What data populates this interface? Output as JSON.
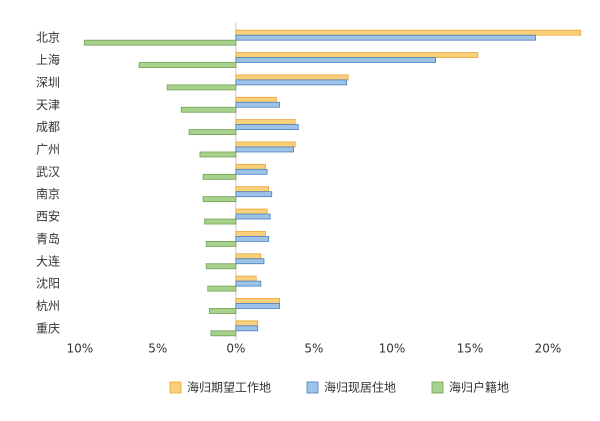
{
  "chart_data": {
    "type": "bar",
    "orientation": "horizontal",
    "categories": [
      "北京",
      "上海",
      "深圳",
      "天津",
      "成都",
      "广州",
      "武汉",
      "南京",
      "西安",
      "青岛",
      "大连",
      "沈阳",
      "杭州",
      "重庆"
    ],
    "series": [
      {
        "name": "海归期望工作地",
        "color": "#f9d07a",
        "values": [
          22.1,
          15.5,
          7.2,
          2.6,
          3.8,
          3.8,
          1.9,
          2.1,
          2.0,
          1.9,
          1.6,
          1.3,
          2.8,
          1.4
        ]
      },
      {
        "name": "海归现居住地",
        "color": "#9dc3e6",
        "values": [
          19.2,
          12.8,
          7.1,
          2.8,
          4.0,
          3.7,
          2.0,
          2.3,
          2.2,
          2.1,
          1.8,
          1.6,
          2.8,
          1.4
        ]
      },
      {
        "name": "海归户籍地",
        "color": "#a9d18e",
        "values": [
          -9.7,
          -6.2,
          -4.4,
          -3.5,
          -3.0,
          -2.3,
          -2.1,
          -2.1,
          -2.0,
          -1.9,
          -1.9,
          -1.8,
          -1.7,
          -1.6
        ]
      }
    ],
    "xlim": [
      -10.5,
      22.5
    ],
    "xticks": [
      {
        "value": -10,
        "label": "10%"
      },
      {
        "value": -5,
        "label": "5%"
      },
      {
        "value": 0,
        "label": "0%"
      },
      {
        "value": 5,
        "label": "5%"
      },
      {
        "value": 10,
        "label": "10%"
      },
      {
        "value": 15,
        "label": "15%"
      },
      {
        "value": 20,
        "label": "20%"
      }
    ],
    "legend": "bottom"
  }
}
